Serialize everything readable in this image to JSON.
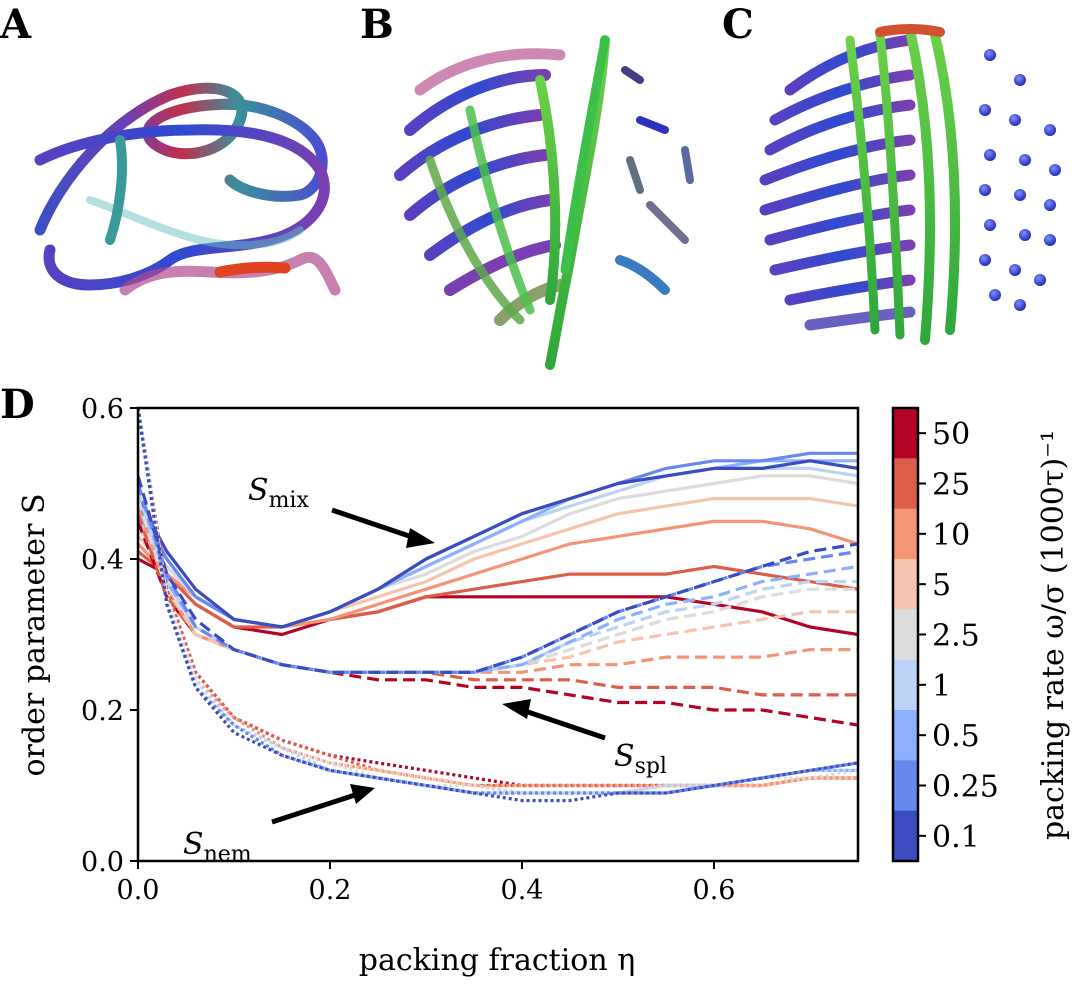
{
  "panels": {
    "a_letter": "A",
    "b_letter": "B",
    "c_letter": "C",
    "d_letter": "D"
  },
  "chart_data": {
    "type": "line",
    "xlabel": "packing fraction η",
    "ylabel": "order parameter S",
    "xlim": [
      0.0,
      0.75
    ],
    "ylim": [
      0.0,
      0.6
    ],
    "xticks": [
      "0.0",
      "0.2",
      "0.4",
      "0.6"
    ],
    "xtick_values": [
      0.0,
      0.2,
      0.4,
      0.6
    ],
    "yticks": [
      "0.0",
      "0.2",
      "0.4",
      "0.6"
    ],
    "ytick_values": [
      0.0,
      0.2,
      0.4,
      0.6
    ],
    "grid": false,
    "colorbar": {
      "label": "packing rate ω/σ (1000τ)⁻¹",
      "levels": [
        "50",
        "25",
        "10",
        "5",
        "2.5",
        "1",
        "0.5",
        "0.25",
        "0.1"
      ],
      "colors": [
        "#b40426",
        "#dc5d4a",
        "#f39475",
        "#f5c4ac",
        "#dddcdc",
        "#bcd2f7",
        "#8db0fe",
        "#6788ee",
        "#3b4cc0"
      ]
    },
    "annotations": [
      {
        "name": "S",
        "sub": "mix"
      },
      {
        "name": "S",
        "sub": "spl"
      },
      {
        "name": "S",
        "sub": "nem"
      }
    ],
    "x": [
      0.0,
      0.03,
      0.06,
      0.1,
      0.15,
      0.2,
      0.25,
      0.3,
      0.35,
      0.4,
      0.45,
      0.5,
      0.55,
      0.6,
      0.65,
      0.7,
      0.75
    ],
    "series_groups": [
      {
        "group": "mix",
        "style": "solid",
        "series": [
          {
            "rate": "50",
            "values": [
              0.4,
              0.38,
              0.34,
              0.31,
              0.3,
              0.32,
              0.33,
              0.35,
              0.35,
              0.35,
              0.35,
              0.35,
              0.35,
              0.34,
              0.33,
              0.31,
              0.3
            ]
          },
          {
            "rate": "25",
            "values": [
              0.41,
              0.38,
              0.34,
              0.31,
              0.31,
              0.32,
              0.33,
              0.35,
              0.36,
              0.37,
              0.38,
              0.38,
              0.38,
              0.39,
              0.38,
              0.37,
              0.36
            ]
          },
          {
            "rate": "10",
            "values": [
              0.42,
              0.38,
              0.35,
              0.32,
              0.31,
              0.32,
              0.34,
              0.36,
              0.38,
              0.4,
              0.42,
              0.43,
              0.44,
              0.45,
              0.45,
              0.44,
              0.42
            ]
          },
          {
            "rate": "5",
            "values": [
              0.43,
              0.39,
              0.35,
              0.32,
              0.31,
              0.33,
              0.35,
              0.37,
              0.4,
              0.42,
              0.44,
              0.46,
              0.47,
              0.48,
              0.48,
              0.48,
              0.47
            ]
          },
          {
            "rate": "2.5",
            "values": [
              0.44,
              0.39,
              0.35,
              0.32,
              0.31,
              0.33,
              0.36,
              0.38,
              0.41,
              0.43,
              0.46,
              0.48,
              0.49,
              0.5,
              0.51,
              0.51,
              0.5
            ]
          },
          {
            "rate": "1",
            "values": [
              0.45,
              0.4,
              0.35,
              0.32,
              0.31,
              0.33,
              0.36,
              0.39,
              0.42,
              0.45,
              0.47,
              0.49,
              0.51,
              0.52,
              0.52,
              0.52,
              0.51
            ]
          },
          {
            "rate": "0.5",
            "values": [
              0.46,
              0.4,
              0.35,
              0.32,
              0.31,
              0.33,
              0.36,
              0.39,
              0.42,
              0.45,
              0.48,
              0.5,
              0.51,
              0.52,
              0.53,
              0.53,
              0.53
            ]
          },
          {
            "rate": "0.25",
            "values": [
              0.47,
              0.4,
              0.35,
              0.32,
              0.31,
              0.33,
              0.36,
              0.4,
              0.43,
              0.46,
              0.48,
              0.5,
              0.52,
              0.53,
              0.53,
              0.54,
              0.54
            ]
          },
          {
            "rate": "0.1",
            "values": [
              0.48,
              0.41,
              0.36,
              0.32,
              0.31,
              0.33,
              0.36,
              0.4,
              0.43,
              0.46,
              0.48,
              0.5,
              0.51,
              0.52,
              0.52,
              0.53,
              0.52
            ]
          }
        ]
      },
      {
        "group": "spl",
        "style": "dashed",
        "series": [
          {
            "rate": "50",
            "values": [
              0.45,
              0.35,
              0.3,
              0.28,
              0.26,
              0.25,
              0.24,
              0.24,
              0.23,
              0.23,
              0.22,
              0.21,
              0.21,
              0.2,
              0.2,
              0.19,
              0.18
            ]
          },
          {
            "rate": "25",
            "values": [
              0.46,
              0.35,
              0.3,
              0.28,
              0.26,
              0.25,
              0.25,
              0.25,
              0.24,
              0.24,
              0.24,
              0.23,
              0.23,
              0.23,
              0.22,
              0.22,
              0.22
            ]
          },
          {
            "rate": "10",
            "values": [
              0.47,
              0.36,
              0.3,
              0.28,
              0.26,
              0.25,
              0.25,
              0.25,
              0.25,
              0.25,
              0.26,
              0.26,
              0.27,
              0.27,
              0.27,
              0.28,
              0.28
            ]
          },
          {
            "rate": "5",
            "values": [
              0.48,
              0.36,
              0.3,
              0.28,
              0.26,
              0.25,
              0.25,
              0.25,
              0.25,
              0.26,
              0.27,
              0.29,
              0.3,
              0.31,
              0.32,
              0.33,
              0.33
            ]
          },
          {
            "rate": "2.5",
            "values": [
              0.48,
              0.36,
              0.31,
              0.28,
              0.26,
              0.25,
              0.25,
              0.25,
              0.25,
              0.26,
              0.28,
              0.3,
              0.32,
              0.33,
              0.35,
              0.36,
              0.36
            ]
          },
          {
            "rate": "1",
            "values": [
              0.49,
              0.37,
              0.31,
              0.28,
              0.26,
              0.25,
              0.25,
              0.25,
              0.25,
              0.26,
              0.29,
              0.31,
              0.33,
              0.34,
              0.36,
              0.37,
              0.37
            ]
          },
          {
            "rate": "0.5",
            "values": [
              0.5,
              0.37,
              0.31,
              0.28,
              0.26,
              0.25,
              0.25,
              0.25,
              0.25,
              0.26,
              0.29,
              0.32,
              0.34,
              0.35,
              0.37,
              0.38,
              0.39
            ]
          },
          {
            "rate": "0.25",
            "values": [
              0.5,
              0.38,
              0.31,
              0.28,
              0.26,
              0.25,
              0.25,
              0.25,
              0.25,
              0.27,
              0.3,
              0.33,
              0.35,
              0.37,
              0.39,
              0.4,
              0.41
            ]
          },
          {
            "rate": "0.1",
            "values": [
              0.51,
              0.38,
              0.32,
              0.28,
              0.26,
              0.25,
              0.25,
              0.25,
              0.25,
              0.27,
              0.3,
              0.33,
              0.35,
              0.37,
              0.39,
              0.41,
              0.42
            ]
          }
        ]
      },
      {
        "group": "nem",
        "style": "dotted",
        "series": [
          {
            "rate": "50",
            "values": [
              0.6,
              0.36,
              0.25,
              0.19,
              0.16,
              0.14,
              0.13,
              0.12,
              0.11,
              0.1,
              0.1,
              0.1,
              0.1,
              0.1,
              0.1,
              0.11,
              0.11
            ]
          },
          {
            "rate": "25",
            "values": [
              0.6,
              0.36,
              0.25,
              0.19,
              0.16,
              0.14,
              0.12,
              0.11,
              0.1,
              0.1,
              0.1,
              0.1,
              0.1,
              0.1,
              0.1,
              0.11,
              0.11
            ]
          },
          {
            "rate": "10",
            "values": [
              0.6,
              0.35,
              0.24,
              0.19,
              0.15,
              0.13,
              0.12,
              0.11,
              0.1,
              0.1,
              0.1,
              0.1,
              0.1,
              0.1,
              0.1,
              0.11,
              0.11
            ]
          },
          {
            "rate": "5",
            "values": [
              0.6,
              0.35,
              0.24,
              0.18,
              0.15,
              0.13,
              0.12,
              0.11,
              0.1,
              0.09,
              0.09,
              0.09,
              0.1,
              0.1,
              0.1,
              0.11,
              0.11
            ]
          },
          {
            "rate": "2.5",
            "values": [
              0.6,
              0.35,
              0.24,
              0.18,
              0.15,
              0.13,
              0.11,
              0.1,
              0.1,
              0.09,
              0.09,
              0.09,
              0.1,
              0.1,
              0.11,
              0.11,
              0.12
            ]
          },
          {
            "rate": "1",
            "values": [
              0.6,
              0.34,
              0.24,
              0.18,
              0.15,
              0.12,
              0.11,
              0.1,
              0.09,
              0.09,
              0.09,
              0.09,
              0.1,
              0.1,
              0.11,
              0.12,
              0.12
            ]
          },
          {
            "rate": "0.5",
            "values": [
              0.6,
              0.34,
              0.23,
              0.18,
              0.14,
              0.12,
              0.11,
              0.1,
              0.09,
              0.09,
              0.09,
              0.09,
              0.09,
              0.1,
              0.11,
              0.12,
              0.12
            ]
          },
          {
            "rate": "0.25",
            "values": [
              0.6,
              0.34,
              0.23,
              0.18,
              0.14,
              0.12,
              0.11,
              0.1,
              0.09,
              0.09,
              0.09,
              0.09,
              0.09,
              0.1,
              0.11,
              0.12,
              0.13
            ]
          },
          {
            "rate": "0.1",
            "values": [
              0.6,
              0.34,
              0.23,
              0.17,
              0.14,
              0.12,
              0.11,
              0.1,
              0.09,
              0.08,
              0.08,
              0.09,
              0.09,
              0.1,
              0.11,
              0.12,
              0.13
            ]
          }
        ]
      }
    ]
  }
}
